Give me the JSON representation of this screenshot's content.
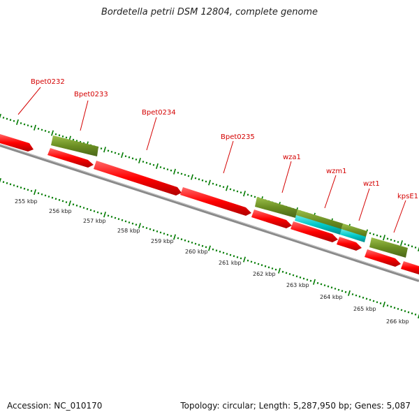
{
  "title": "Bordetella petrii DSM 12804, complete genome",
  "accession_text": "Accession: NC_010170",
  "topology_text": "Topology: circular; Length: 5,287,950 bp; Genes: 5,087",
  "colors": {
    "gene_red": "#ff0000",
    "gene_olive": "#6b8e23",
    "gene_cyan": "#00c8c8",
    "backbone": "#808080",
    "tick_green": "#007a00",
    "label_red": "#d40000"
  },
  "gene_labels": [
    "Bpet0232",
    "Bpet0233",
    "Bpet0234",
    "Bpet0235",
    "wza1",
    "wzm1",
    "wzt1",
    "kpsE1"
  ],
  "kbp_labels": [
    "255 kbp",
    "256 kbp",
    "257 kbp",
    "258 kbp",
    "259 kbp",
    "260 kbp",
    "261 kbp",
    "262 kbp",
    "263 kbp",
    "264 kbp",
    "265 kbp",
    "266 kbp"
  ]
}
